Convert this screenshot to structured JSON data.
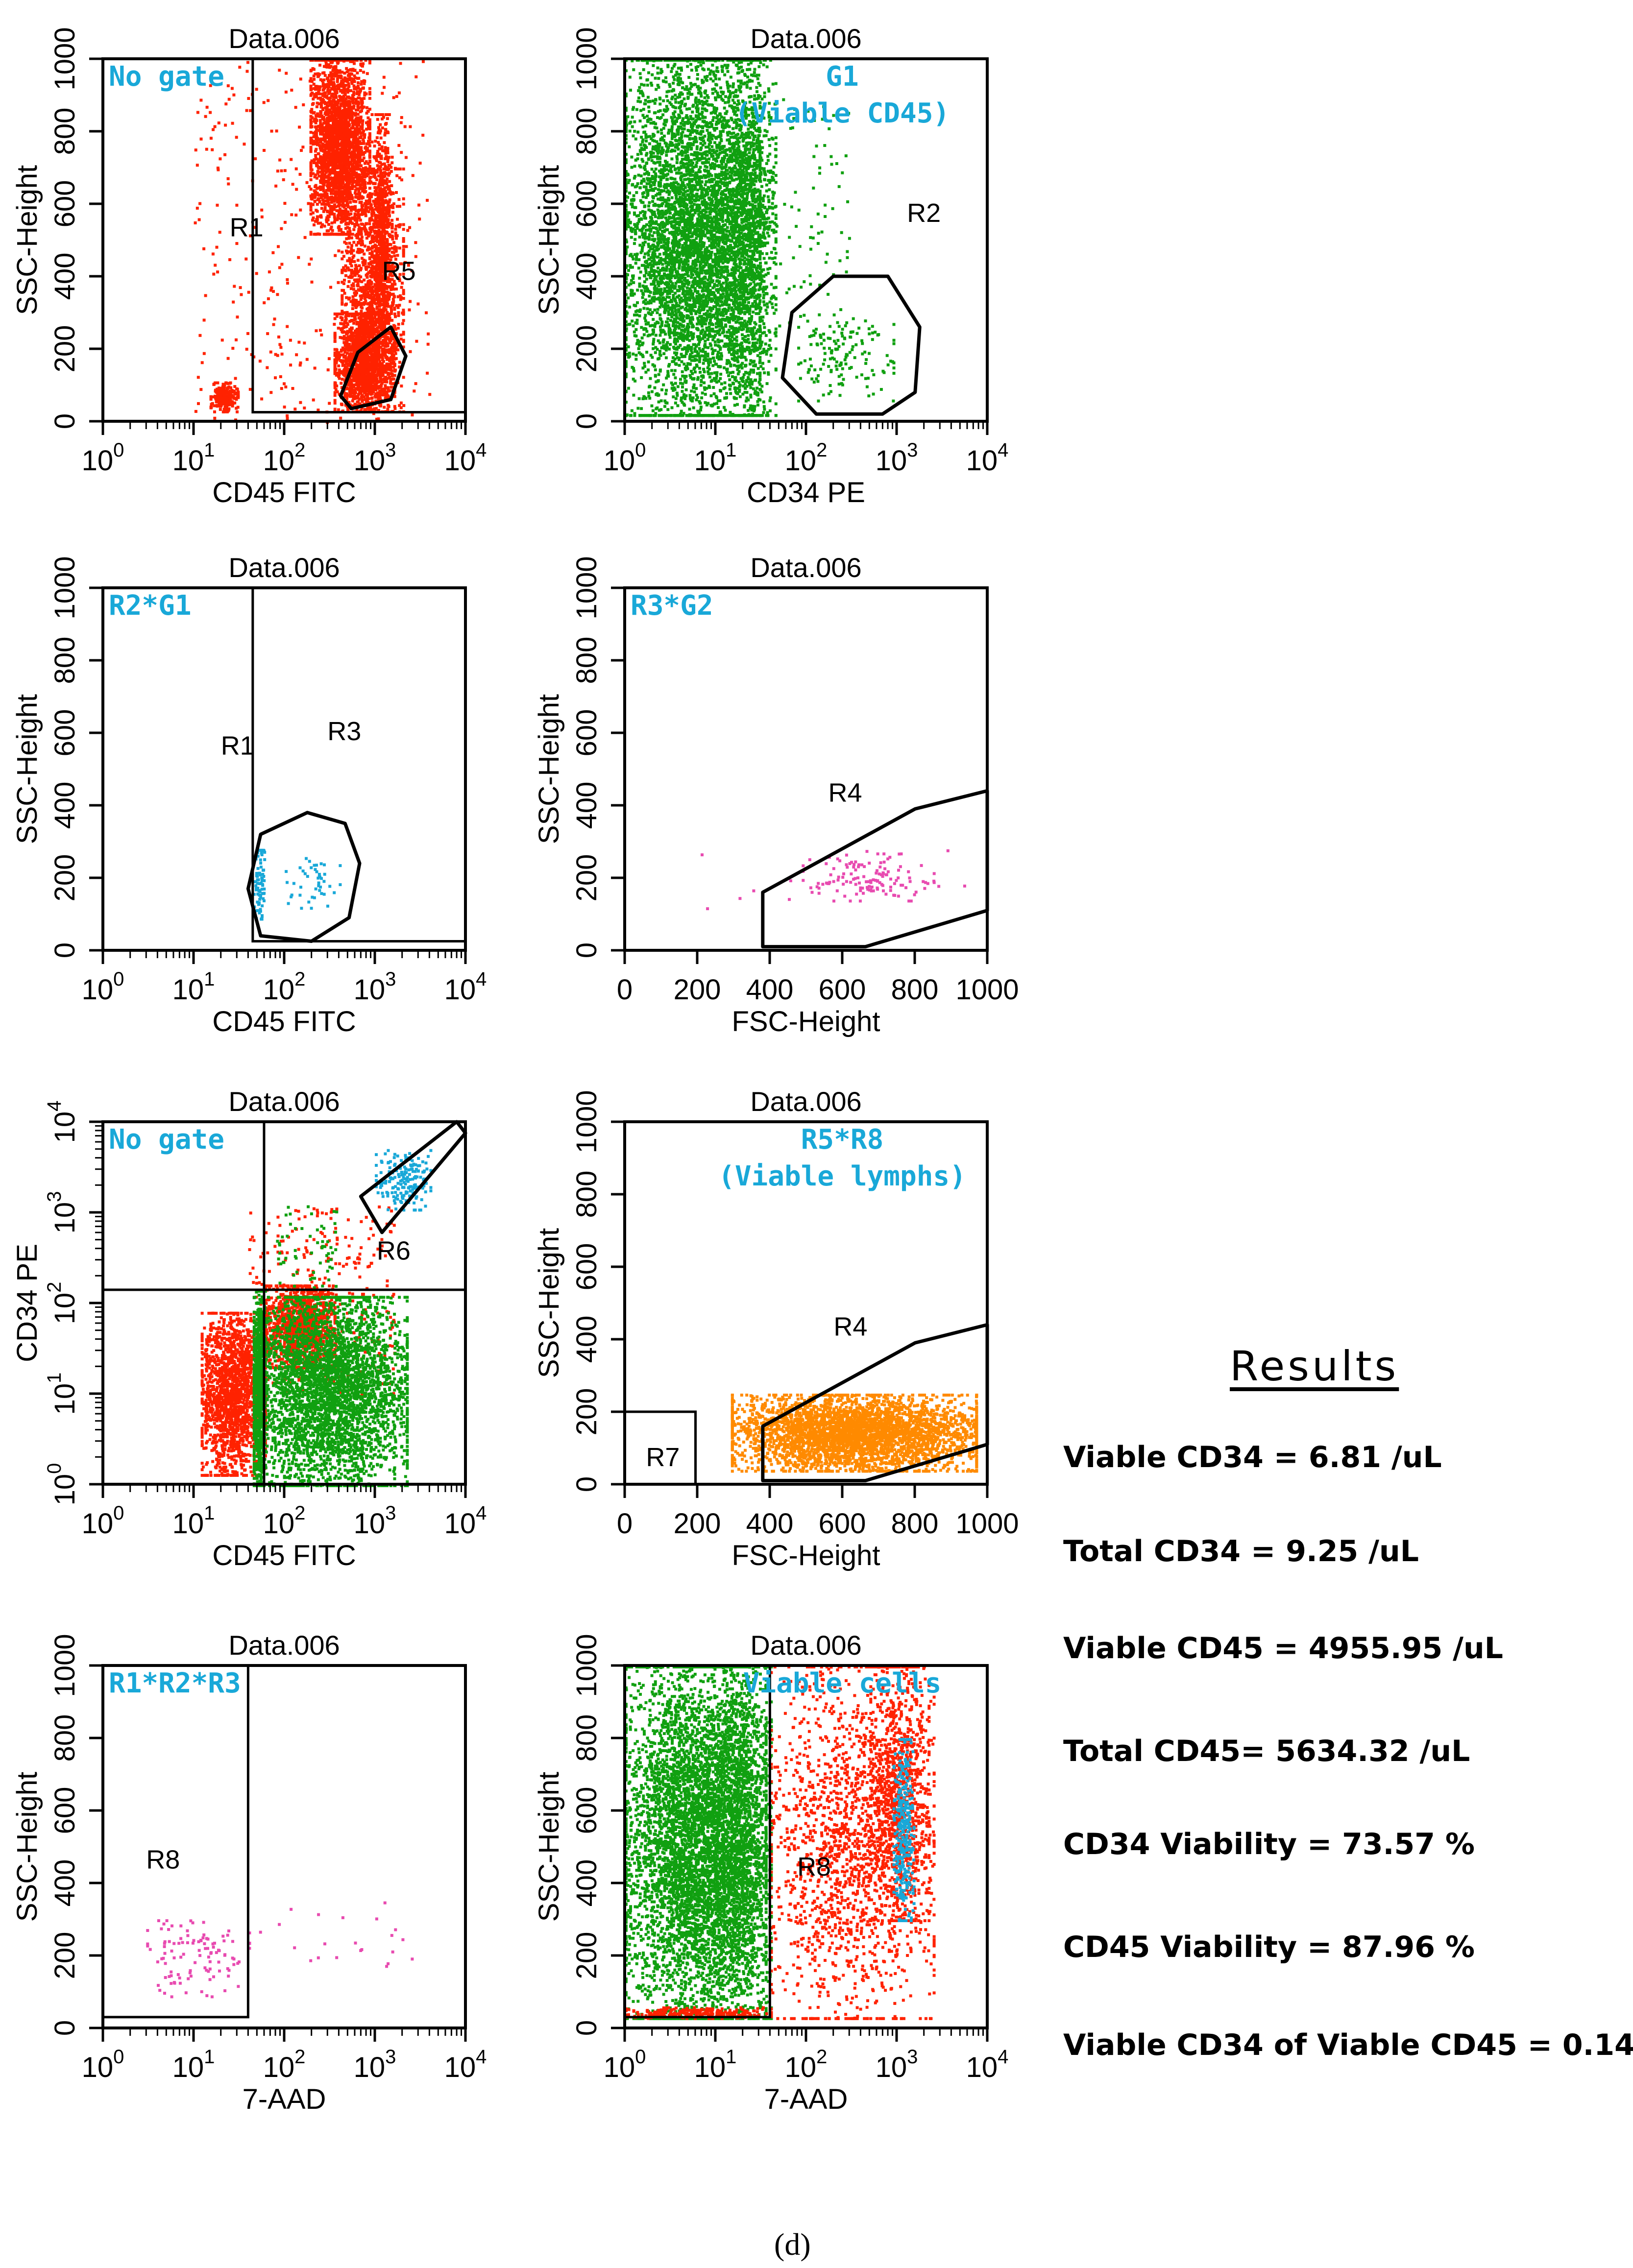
{
  "colors": {
    "red": "#ff2200",
    "green": "#10a010",
    "cyan": "#19a8d8",
    "pink": "#e84bb0",
    "orange": "#ff8a00",
    "gate_label": "#19a8d8",
    "axis": "#000000"
  },
  "chart_data": [
    {
      "type": "scatter",
      "title": "Data.006",
      "gate_label": [
        "No gate"
      ],
      "xlabel": "CD45 FITC",
      "ylabel": "SSC-Height",
      "xscale": "log",
      "xlim": [
        1,
        10000
      ],
      "ylim": [
        0,
        1000
      ],
      "xtick_labels": [
        "10^0",
        "10^1",
        "10^2",
        "10^3",
        "10^4"
      ],
      "ytick_labels": [
        "0",
        "200",
        "400",
        "600",
        "800",
        "1000"
      ],
      "region_labels": [
        {
          "text": "R1",
          "x": 25,
          "y": 510
        },
        {
          "text": "R5",
          "x": 1200,
          "y": 390
        }
      ],
      "regions": [
        {
          "name": "R1-boundary",
          "kind": "rect",
          "x": [
            45,
            10000
          ],
          "y": [
            25,
            1000
          ]
        },
        {
          "name": "R5-gate",
          "kind": "polygon",
          "points": [
            [
              550,
              35
            ],
            [
              1500,
              60
            ],
            [
              2200,
              180
            ],
            [
              1500,
              260
            ],
            [
              650,
              190
            ],
            [
              420,
              70
            ]
          ]
        }
      ],
      "clusters": [
        {
          "color": "red",
          "kind": "gauss",
          "cx": [
            190,
            850
          ],
          "cy": [
            520,
            1000
          ],
          "n": 2400
        },
        {
          "color": "red",
          "kind": "gauss",
          "cx": [
            420,
            2000
          ],
          "cy": [
            30,
            700
          ],
          "n": 1300
        },
        {
          "color": "red",
          "kind": "gauss",
          "cx": [
            900,
            1500
          ],
          "cy": [
            250,
            850
          ],
          "n": 600
        },
        {
          "color": "red",
          "kind": "gauss",
          "cx": [
            350,
            1600
          ],
          "cy": [
            30,
            300
          ],
          "n": 1400
        },
        {
          "color": "red",
          "kind": "gauss",
          "cx": [
            15,
            30
          ],
          "cy": [
            30,
            110
          ],
          "n": 250
        },
        {
          "color": "red",
          "kind": "uniform",
          "cx": [
            10,
            4000
          ],
          "cy": [
            0,
            1000
          ],
          "n": 380
        }
      ]
    },
    {
      "type": "scatter",
      "title": "Data.006",
      "gate_label": [
        "G1",
        "(Viable  CD45)"
      ],
      "xlabel": "CD34 PE",
      "ylabel": "SSC-Height",
      "xscale": "log",
      "xlim": [
        1,
        10000
      ],
      "ylim": [
        0,
        1000
      ],
      "xtick_labels": [
        "10^0",
        "10^1",
        "10^2",
        "10^3",
        "10^4"
      ],
      "ytick_labels": [
        "0",
        "200",
        "400",
        "600",
        "800",
        "1000"
      ],
      "region_labels": [
        {
          "text": "R2",
          "x": 1300,
          "y": 550
        }
      ],
      "regions": [
        {
          "name": "R2-gate",
          "kind": "polygon",
          "points": [
            [
              70,
              300
            ],
            [
              200,
              400
            ],
            [
              800,
              400
            ],
            [
              1800,
              260
            ],
            [
              1600,
              80
            ],
            [
              700,
              20
            ],
            [
              130,
              20
            ],
            [
              55,
              120
            ]
          ]
        }
      ],
      "clusters": [
        {
          "color": "green",
          "kind": "gauss",
          "cx": [
            1,
            30
          ],
          "cy": [
            20,
            1000
          ],
          "n": 5200
        },
        {
          "color": "green",
          "kind": "gauss",
          "cx": [
            10,
            45
          ],
          "cy": [
            20,
            1000
          ],
          "n": 1600
        },
        {
          "color": "green",
          "kind": "gauss",
          "cx": [
            80,
            900
          ],
          "cy": [
            60,
            300
          ],
          "n": 140
        },
        {
          "color": "green",
          "kind": "uniform",
          "cx": [
            30,
            300
          ],
          "cy": [
            200,
            900
          ],
          "n": 90
        }
      ]
    },
    {
      "type": "scatter",
      "title": "Data.006",
      "gate_label": [
        "R2*G1"
      ],
      "xlabel": "CD45 FITC",
      "ylabel": "SSC-Height",
      "xscale": "log",
      "xlim": [
        1,
        10000
      ],
      "ylim": [
        0,
        1000
      ],
      "xtick_labels": [
        "10^0",
        "10^1",
        "10^2",
        "10^3",
        "10^4"
      ],
      "ytick_labels": [
        "0",
        "200",
        "400",
        "600",
        "800",
        "1000"
      ],
      "region_labels": [
        {
          "text": "R1",
          "x": 20,
          "y": 540
        },
        {
          "text": "R3",
          "x": 300,
          "y": 580
        }
      ],
      "regions": [
        {
          "name": "R1-boundary",
          "kind": "rect",
          "x": [
            45,
            10000
          ],
          "y": [
            25,
            1000
          ]
        },
        {
          "name": "R3-gate",
          "kind": "polygon",
          "points": [
            [
              55,
              320
            ],
            [
              180,
              380
            ],
            [
              470,
              350
            ],
            [
              680,
              240
            ],
            [
              520,
              90
            ],
            [
              200,
              25
            ],
            [
              55,
              40
            ],
            [
              40,
              170
            ]
          ]
        }
      ],
      "clusters": [
        {
          "color": "cyan",
          "kind": "gauss",
          "cx": [
            45,
            60
          ],
          "cy": [
            90,
            280
          ],
          "n": 80
        },
        {
          "color": "cyan",
          "kind": "gauss",
          "cx": [
            100,
            400
          ],
          "cy": [
            120,
            260
          ],
          "n": 45
        }
      ]
    },
    {
      "type": "scatter",
      "title": "Data.006",
      "gate_label": [
        "R3*G2"
      ],
      "xlabel": "FSC-Height",
      "ylabel": "SSC-Height",
      "xscale": "linear",
      "xlim": [
        0,
        1024
      ],
      "ylim": [
        0,
        1000
      ],
      "xtick_labels": [
        "0",
        "200",
        "400",
        "600",
        "800",
        "1000"
      ],
      "ytick_labels": [
        "0",
        "200",
        "400",
        "600",
        "800",
        "1000"
      ],
      "region_labels": [
        {
          "text": "R4",
          "x": 575,
          "y": 410
        }
      ],
      "regions": [
        {
          "name": "R4-gate",
          "kind": "polygon",
          "points": [
            [
              390,
              160
            ],
            [
              820,
              390
            ],
            [
              1024,
              440
            ],
            [
              1024,
              110
            ],
            [
              680,
              10
            ],
            [
              390,
              10
            ]
          ]
        }
      ],
      "clusters": [
        {
          "color": "pink",
          "kind": "gauss",
          "cx": [
            500,
            870
          ],
          "cy": [
            140,
            270
          ],
          "n": 130
        },
        {
          "color": "pink",
          "kind": "uniform",
          "cx": [
            60,
            1010
          ],
          "cy": [
            100,
            300
          ],
          "n": 12
        }
      ]
    },
    {
      "type": "scatter",
      "title": "Data.006",
      "gate_label": [
        "No gate"
      ],
      "xlabel": "CD45 FITC",
      "ylabel": "CD34 PE",
      "xscale": "log",
      "yscale": "log",
      "xlim": [
        1,
        10000
      ],
      "ylim": [
        1,
        10000
      ],
      "xtick_labels": [
        "10^0",
        "10^1",
        "10^2",
        "10^3",
        "10^4"
      ],
      "ytick_labels": [
        "10^0",
        "10^1",
        "10^2",
        "10^3",
        "10^4"
      ],
      "region_labels": [
        {
          "text": "R6",
          "x": 1050,
          "y": 300
        }
      ],
      "regions": [
        {
          "name": "quadrant-vertical",
          "kind": "vline",
          "x": 60
        },
        {
          "name": "quadrant-horizontal",
          "kind": "hline",
          "y": 140
        },
        {
          "name": "R6-gate",
          "kind": "polygon",
          "points": [
            [
              700,
              1500
            ],
            [
              8000,
              10000
            ],
            [
              10000,
              7500
            ],
            [
              1200,
              600
            ]
          ]
        }
      ],
      "clusters": [
        {
          "color": "red",
          "kind": "gauss",
          "cx": [
            12,
            60
          ],
          "cy": [
            1.3,
            80
          ],
          "n": 1800
        },
        {
          "color": "red",
          "kind": "gauss",
          "cx": [
            60,
            350
          ],
          "cy": [
            20,
            160
          ],
          "n": 1300
        },
        {
          "color": "red",
          "kind": "uniform",
          "cx": [
            40,
            1600
          ],
          "cy": [
            10,
            1200
          ],
          "n": 300
        },
        {
          "color": "green",
          "kind": "gauss",
          "cx": [
            45,
            2200
          ],
          "cy": [
            1,
            120
          ],
          "n": 3800
        },
        {
          "color": "green",
          "kind": "gauss",
          "cx": [
            45,
            60
          ],
          "cy": [
            1,
            140
          ],
          "n": 700
        },
        {
          "color": "green",
          "kind": "uniform",
          "cx": [
            80,
            400
          ],
          "cy": [
            150,
            1200
          ],
          "n": 60
        },
        {
          "color": "cyan",
          "kind": "gauss",
          "cx": [
            1000,
            4000
          ],
          "cy": [
            1100,
            5000
          ],
          "n": 180
        }
      ]
    },
    {
      "type": "scatter",
      "title": "Data.006",
      "gate_label": [
        "R5*R8",
        "(Viable  lymphs)"
      ],
      "xlabel": "FSC-Height",
      "ylabel": "SSC-Height",
      "xscale": "linear",
      "xlim": [
        0,
        1024
      ],
      "ylim": [
        0,
        1000
      ],
      "xtick_labels": [
        "0",
        "200",
        "400",
        "600",
        "800",
        "1000"
      ],
      "ytick_labels": [
        "0",
        "200",
        "400",
        "600",
        "800",
        "1000"
      ],
      "region_labels": [
        {
          "text": "R4",
          "x": 590,
          "y": 410
        },
        {
          "text": "R7",
          "x": 60,
          "y": 50
        }
      ],
      "regions": [
        {
          "name": "R4-gate",
          "kind": "polygon",
          "points": [
            [
              390,
              160
            ],
            [
              820,
              390
            ],
            [
              1024,
              440
            ],
            [
              1024,
              110
            ],
            [
              680,
              10
            ],
            [
              390,
              10
            ]
          ]
        },
        {
          "name": "R7-gate",
          "kind": "rect",
          "x": [
            0,
            200
          ],
          "y": [
            0,
            200
          ]
        }
      ],
      "clusters": [
        {
          "color": "orange",
          "kind": "gauss",
          "cx": [
            300,
            990
          ],
          "cy": [
            40,
            250
          ],
          "n": 3600
        }
      ]
    },
    {
      "type": "scatter",
      "title": "Data.006",
      "gate_label": [
        "R1*R2*R3"
      ],
      "xlabel": "7-AAD",
      "ylabel": "SSC-Height",
      "xscale": "log",
      "xlim": [
        1,
        10000
      ],
      "ylim": [
        0,
        1000
      ],
      "xtick_labels": [
        "10^0",
        "10^1",
        "10^2",
        "10^3",
        "10^4"
      ],
      "ytick_labels": [
        "0",
        "200",
        "400",
        "600",
        "800",
        "1000"
      ],
      "region_labels": [
        {
          "text": "R8",
          "x": 3,
          "y": 440
        }
      ],
      "regions": [
        {
          "name": "R8-gate",
          "kind": "rect",
          "x": [
            1,
            40
          ],
          "y": [
            30,
            1000
          ]
        }
      ],
      "clusters": [
        {
          "color": "pink",
          "kind": "gauss",
          "cx": [
            3,
            40
          ],
          "cy": [
            90,
            300
          ],
          "n": 110
        },
        {
          "color": "pink",
          "kind": "uniform",
          "cx": [
            50,
            3000
          ],
          "cy": [
            170,
            360
          ],
          "n": 22
        }
      ]
    },
    {
      "type": "scatter",
      "title": "Data.006",
      "gate_label": [
        "Viable   cells"
      ],
      "xlabel": "7-AAD",
      "ylabel": "SSC-Height",
      "xscale": "log",
      "xlim": [
        1,
        10000
      ],
      "ylim": [
        0,
        1000
      ],
      "xtick_labels": [
        "10^0",
        "10^1",
        "10^2",
        "10^3",
        "10^4"
      ],
      "ytick_labels": [
        "0",
        "200",
        "400",
        "600",
        "800",
        "1000"
      ],
      "region_labels": [
        {
          "text": "R8",
          "x": 80,
          "y": 420
        }
      ],
      "regions": [
        {
          "name": "R8-gate",
          "kind": "rect",
          "x": [
            1,
            40
          ],
          "y": [
            30,
            1000
          ]
        }
      ],
      "clusters": [
        {
          "color": "green",
          "kind": "gauss",
          "cx": [
            1,
            35
          ],
          "cy": [
            30,
            1000
          ],
          "n": 5200
        },
        {
          "color": "green",
          "kind": "gauss",
          "cx": [
            8,
            40
          ],
          "cy": [
            30,
            1000
          ],
          "n": 1500
        },
        {
          "color": "red",
          "kind": "gauss",
          "cx": [
            40,
            2500
          ],
          "cy": [
            30,
            1000
          ],
          "n": 1700
        },
        {
          "color": "red",
          "kind": "gauss",
          "cx": [
            500,
            2200
          ],
          "cy": [
            300,
            1000
          ],
          "n": 900
        },
        {
          "color": "red",
          "kind": "gauss",
          "cx": [
            1,
            40
          ],
          "cy": [
            30,
            60
          ],
          "n": 250
        },
        {
          "color": "cyan",
          "kind": "gauss",
          "cx": [
            900,
            1500
          ],
          "cy": [
            300,
            800
          ],
          "n": 320
        }
      ]
    }
  ],
  "results": {
    "title": "Results",
    "lines": [
      "Viable CD34 =  6.81 /uL",
      "Total CD34 =  9.25 /uL",
      "Viable CD45 =  4955.95 /uL",
      "Total CD45= 5634.32  /uL",
      "CD34 Viability =  73.57 %",
      "CD45 Viability  =  87.96 %",
      "Viable CD34 of Viable CD45 =  0.14"
    ]
  },
  "caption": "(d)"
}
